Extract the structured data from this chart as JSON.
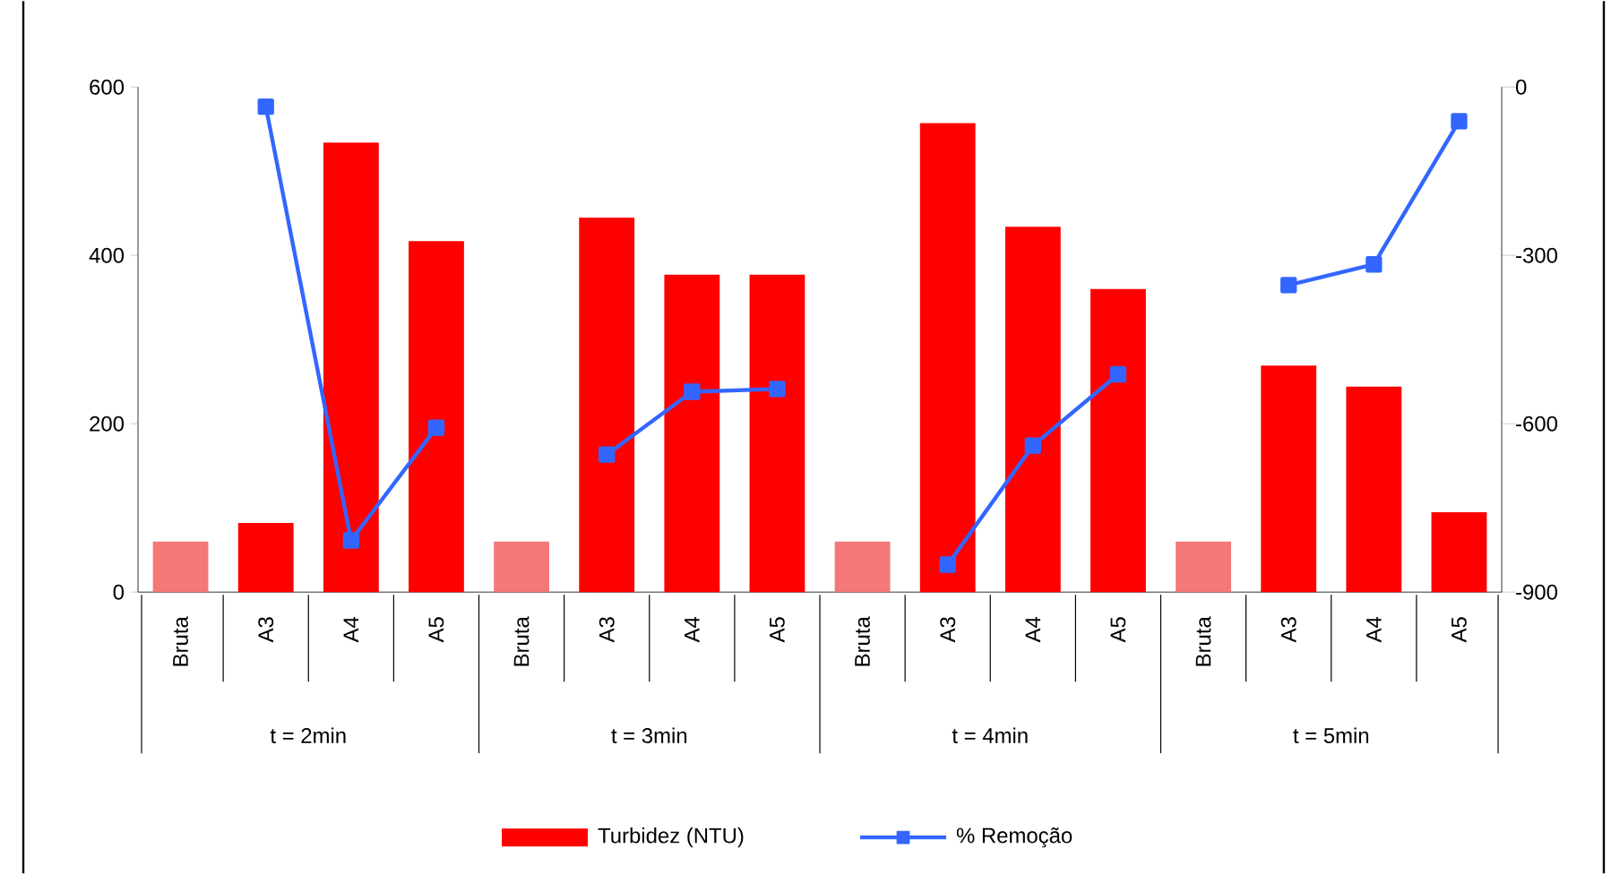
{
  "chart_data": {
    "type": "bar",
    "categories": [
      "Bruta",
      "A3",
      "A4",
      "A5",
      "Bruta",
      "A3",
      "A4",
      "A5",
      "Bruta",
      "A3",
      "A4",
      "A5",
      "Bruta",
      "A3",
      "A4",
      "A5"
    ],
    "series": [
      {
        "name": "Turbidez (NTU)",
        "color": "#ff0000",
        "colors": [
          "#f47878",
          "#ff0000",
          "#ff0000",
          "#ff0000",
          "#f47878",
          "#ff0000",
          "#ff0000",
          "#ff0000",
          "#f47878",
          "#ff0000",
          "#ff0000",
          "#ff0000",
          "#f47878",
          "#ff0000",
          "#ff0000",
          "#ff0000"
        ],
        "values": [
          60,
          82,
          534,
          417,
          60,
          445,
          377,
          377,
          60,
          557,
          434,
          360,
          60,
          269,
          244,
          95
        ]
      },
      {
        "name": "% Remoção",
        "type": "line",
        "axis": "y2",
        "color": "#3366ff",
        "values": [
          null,
          -35,
          -808,
          -607,
          null,
          -655,
          -543,
          -538,
          null,
          -851,
          -639,
          -512,
          null,
          -353,
          -316,
          -61
        ]
      }
    ],
    "ylim": [
      0,
      600
    ],
    "yticks": [
      0,
      200,
      400,
      600
    ],
    "y2lim": [
      -900,
      0
    ],
    "y2ticks": [
      -900,
      -600,
      -300,
      0
    ],
    "annotations": [
      "t = 2min",
      "t = 3min",
      "t = 4min",
      "t = 5min"
    ],
    "marker": "square",
    "line_style": "solid",
    "legend": "bottom",
    "grid": false
  }
}
